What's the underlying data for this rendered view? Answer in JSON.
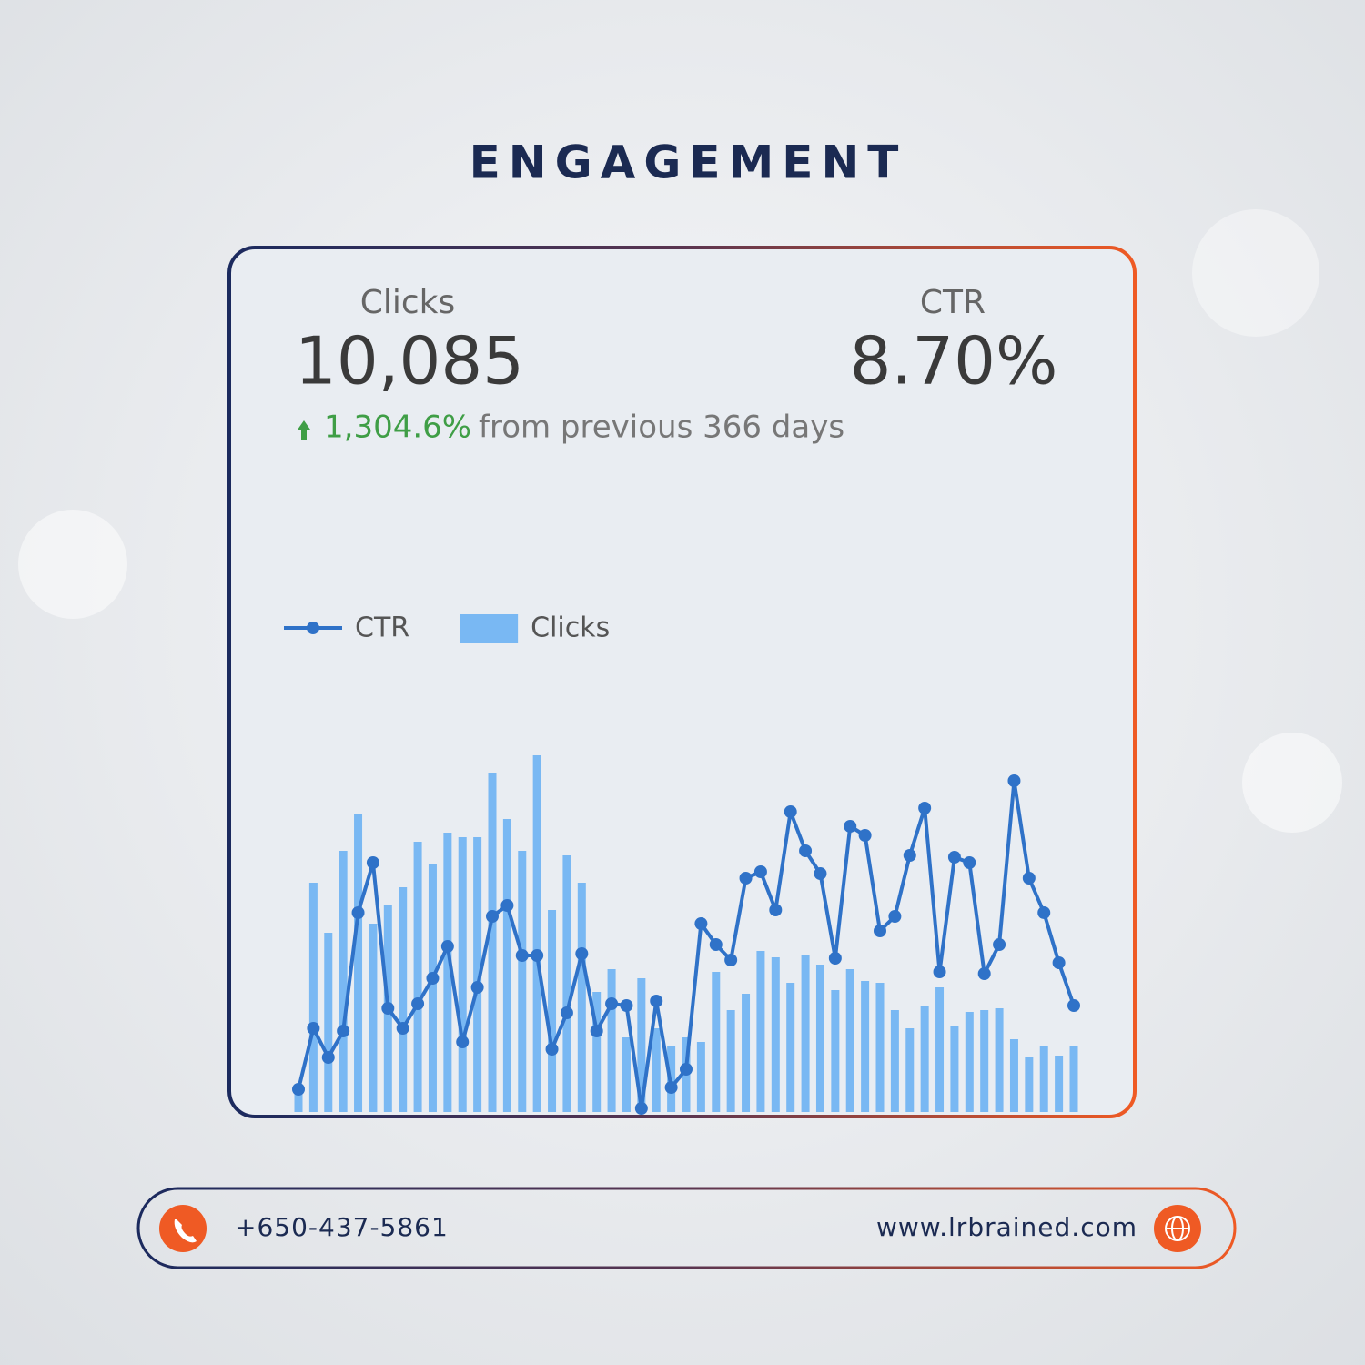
{
  "header": {
    "title": "ENGAGEMENT"
  },
  "metrics": [
    {
      "label": "Clicks",
      "value": "10,085",
      "change": "1,304.6%",
      "change_text": "from previous 366 days"
    },
    {
      "label": "CTR",
      "value": "8.70%"
    }
  ],
  "chart_data": {
    "type": "bar",
    "categories": [
      null,
      null,
      null,
      null,
      null,
      null,
      null,
      null,
      null,
      null,
      null,
      null,
      null,
      null,
      null,
      null,
      null,
      null,
      null,
      null,
      null,
      null,
      null,
      null,
      null,
      null,
      null,
      null,
      null,
      null,
      null,
      null,
      null,
      null,
      null,
      null,
      null,
      null,
      null,
      null,
      null,
      null,
      null,
      null,
      null,
      null,
      null,
      null,
      null,
      null,
      null,
      null,
      null
    ],
    "series": [
      {
        "name": "CTR",
        "type": "line",
        "axis": "y2",
        "color": "#2f72c8",
        "values": [
          25,
          92,
          60,
          89,
          219,
          274,
          114,
          92,
          119,
          147,
          182,
          77,
          137,
          215,
          227,
          172,
          172,
          69,
          109,
          174,
          89,
          119,
          117,
          4,
          122,
          27,
          47,
          207,
          184,
          167,
          257,
          264,
          222,
          330,
          287,
          262,
          169,
          314,
          304,
          199,
          215,
          282,
          334,
          154,
          280,
          274,
          152,
          184,
          364,
          257,
          219,
          164,
          117
        ]
      },
      {
        "name": "Clicks",
        "color": "#79b8f3",
        "values": [
          27,
          252,
          197,
          287,
          327,
          207,
          227,
          247,
          297,
          272,
          307,
          302,
          302,
          372,
          322,
          287,
          392,
          222,
          282,
          252,
          132,
          157,
          82,
          147,
          92,
          72,
          82,
          77,
          154,
          112,
          130,
          177,
          170,
          142,
          172,
          162,
          134,
          157,
          144,
          142,
          112,
          92,
          117,
          137,
          94,
          110,
          112,
          114,
          80,
          60,
          72,
          62,
          72
        ]
      }
    ],
    "ylim": [
      0,
      400
    ],
    "y2lim": [
      0,
      400
    ],
    "grid": false
  },
  "footer": {
    "phone": "+650-437-5861",
    "website": "www.lrbrained.com"
  }
}
